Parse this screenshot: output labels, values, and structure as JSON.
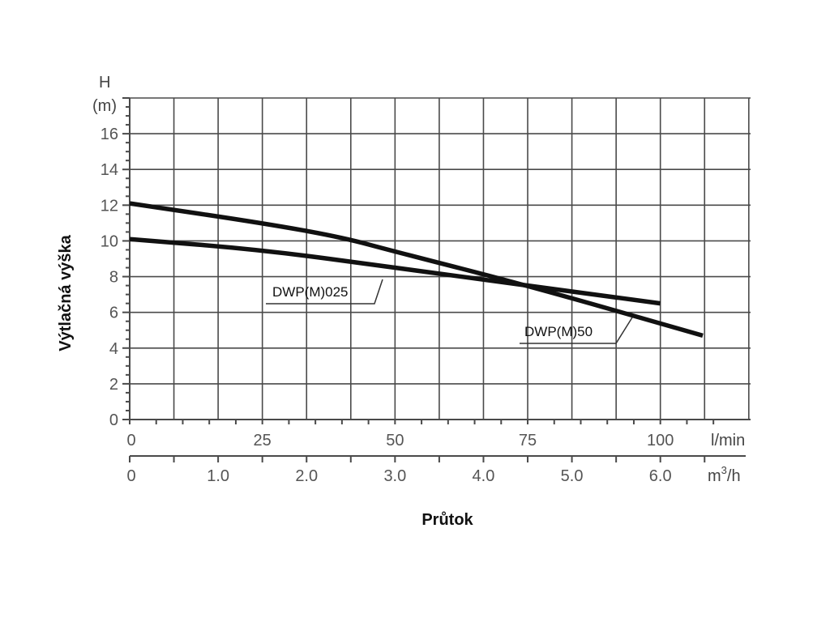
{
  "chart_data": {
    "type": "line",
    "title": "",
    "ylabel": "Výtlačná výška",
    "xlabel": "Průtok",
    "y_unit_top": "H",
    "y_unit_bottom": "(m)",
    "x_unit_primary": "l/min",
    "x_unit_secondary_base": "m",
    "x_unit_secondary_sup": "3",
    "x_unit_secondary_tail": "/h",
    "ylim": [
      0,
      18
    ],
    "xlim": [
      0,
      117
    ],
    "y_ticks": [
      "0",
      "2",
      "4",
      "6",
      "8",
      "10",
      "12",
      "14",
      "16"
    ],
    "x_ticks_primary": [
      "0",
      "25",
      "50",
      "75",
      "100"
    ],
    "x_ticks_secondary": [
      "0",
      "1.0",
      "2.0",
      "3.0",
      "4.0",
      "5.0",
      "6.0"
    ],
    "grid": true,
    "series": [
      {
        "name": "DWP(M)025",
        "x": [
          0,
          25,
          50,
          75,
          100
        ],
        "y": [
          10.1,
          9.5,
          8.5,
          7.5,
          6.5
        ]
      },
      {
        "name": "DWP(M)50",
        "x": [
          0,
          25,
          40,
          50,
          75,
          108
        ],
        "y": [
          12.1,
          11.0,
          10.2,
          9.4,
          7.5,
          4.7
        ]
      }
    ]
  }
}
